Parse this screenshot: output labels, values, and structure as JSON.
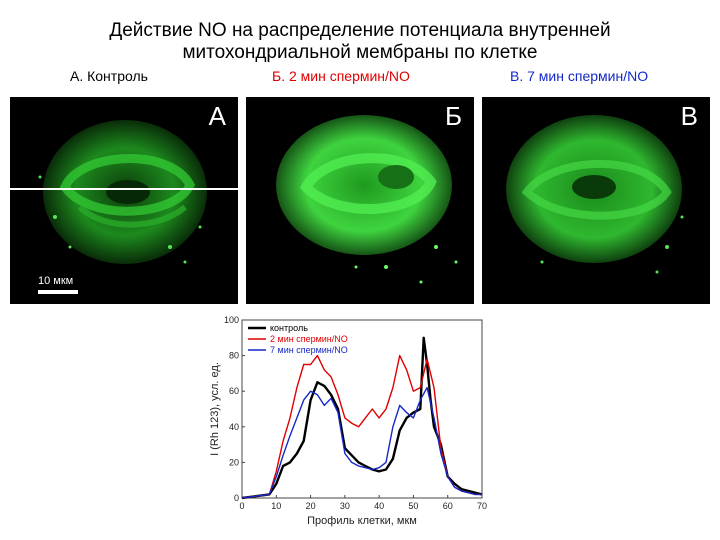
{
  "title": {
    "line1": "Действие NO на распределение потенциала внутренней",
    "line2": "митохондриальной мембраны по клетке"
  },
  "panels": [
    {
      "label": "А.  Контроль",
      "letter": "А",
      "color": "#000000"
    },
    {
      "label": "Б.  2 мин спермин/NO",
      "letter": "Б",
      "color": "#e00000"
    },
    {
      "label": "В.  7 мин спермин/NO",
      "letter": "В",
      "color": "#1428c8"
    }
  ],
  "scale_bar": {
    "label": "10 мкм"
  },
  "colors": {
    "fluorescence": "#3fd43f",
    "background": "#000000"
  },
  "chart_data": {
    "type": "line",
    "xlabel": "Профиль клетки, мкм",
    "ylabel": "I (Rh 123), усл. ед.",
    "xlim": [
      0,
      70
    ],
    "ylim": [
      0,
      100
    ],
    "xticks": [
      0,
      10,
      20,
      30,
      40,
      50,
      60,
      70
    ],
    "yticks": [
      0,
      20,
      40,
      60,
      80,
      100
    ],
    "legend_position": "top-left",
    "series": [
      {
        "name": "контроль",
        "color": "#000000",
        "x": [
          0,
          4,
          8,
          10,
          12,
          14,
          16,
          18,
          20,
          22,
          24,
          26,
          28,
          30,
          32,
          34,
          36,
          38,
          40,
          42,
          44,
          46,
          48,
          50,
          52,
          53,
          54,
          55,
          56,
          58,
          60,
          62,
          64,
          66,
          68,
          70
        ],
        "y": [
          0,
          1,
          2,
          8,
          18,
          20,
          25,
          32,
          55,
          65,
          63,
          58,
          50,
          28,
          24,
          20,
          18,
          16,
          15,
          16,
          22,
          38,
          45,
          48,
          50,
          90,
          75,
          55,
          40,
          30,
          12,
          8,
          5,
          4,
          3,
          2
        ]
      },
      {
        "name": "2 мин спермин/NO",
        "color": "#e00000",
        "x": [
          0,
          4,
          8,
          10,
          12,
          14,
          16,
          18,
          20,
          22,
          24,
          26,
          28,
          30,
          32,
          34,
          36,
          38,
          40,
          42,
          44,
          46,
          48,
          50,
          52,
          54,
          56,
          58,
          60,
          62,
          64,
          66,
          68,
          70
        ],
        "y": [
          0,
          1,
          2,
          15,
          32,
          45,
          62,
          75,
          75,
          80,
          72,
          68,
          58,
          45,
          42,
          40,
          45,
          50,
          45,
          50,
          62,
          80,
          72,
          60,
          62,
          78,
          62,
          28,
          12,
          6,
          4,
          3,
          2,
          2
        ]
      },
      {
        "name": "7 мин спермин/NO",
        "color": "#1428c8",
        "x": [
          0,
          4,
          8,
          10,
          12,
          14,
          16,
          18,
          20,
          22,
          24,
          26,
          28,
          30,
          32,
          34,
          36,
          38,
          40,
          42,
          44,
          46,
          48,
          50,
          52,
          54,
          56,
          58,
          60,
          62,
          64,
          66,
          68,
          70
        ],
        "y": [
          0,
          1,
          2,
          12,
          24,
          35,
          45,
          55,
          60,
          58,
          52,
          56,
          48,
          25,
          20,
          18,
          17,
          16,
          17,
          20,
          40,
          52,
          48,
          45,
          55,
          62,
          45,
          25,
          12,
          6,
          4,
          3,
          2,
          2
        ]
      }
    ]
  }
}
